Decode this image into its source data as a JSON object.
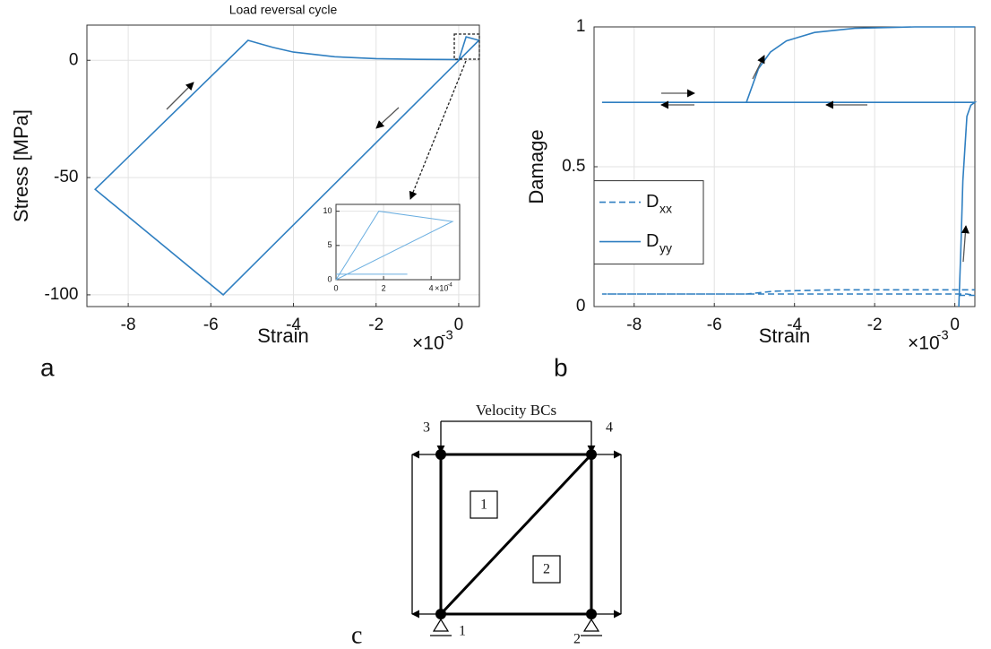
{
  "chart_data": [
    {
      "type": "line",
      "title": "Load reversal cycle",
      "xlabel": "Strain",
      "ylabel": "Stress [MPa]",
      "x_multiplier": "×10",
      "x_multiplier_exp": "-3",
      "panel_label": "a",
      "xlim": [
        -9,
        0.5
      ],
      "ylim": [
        -105,
        15
      ],
      "xticks": [
        -8,
        -6,
        -4,
        -2,
        0
      ],
      "yticks": [
        -100,
        -50,
        0
      ],
      "grid": true,
      "series": [
        {
          "color": "#2f7fc1",
          "linestyle": "solid",
          "x": [
            0,
            0.18,
            0.49,
            -5.7,
            -8.8,
            -5.1,
            -4.5,
            -4,
            -3,
            -2,
            -1,
            0
          ],
          "values": [
            0,
            10,
            8.5,
            -100,
            -55,
            8.5,
            5.5,
            3.5,
            1.5,
            0.7,
            0.4,
            0.3
          ]
        }
      ]
    },
    {
      "type": "line",
      "xlabel": "Strain",
      "ylabel": "Damage",
      "x_multiplier": "×10",
      "x_multiplier_exp": "-3",
      "panel_label": "b",
      "xlim": [
        -9,
        0.5
      ],
      "ylim": [
        0,
        1
      ],
      "xticks": [
        -8,
        -6,
        -4,
        -2,
        0
      ],
      "yticks": [
        0,
        0.5,
        1
      ],
      "grid": true,
      "legend": "center left",
      "series": [
        {
          "name": "D",
          "subscript": "xx",
          "color": "#2f7fc1",
          "linestyle": "dashed",
          "x": [
            0.1,
            0.5,
            0.3,
            -8.8,
            -5.2,
            -4.5,
            -3,
            -1,
            0.5
          ],
          "values": [
            0.04,
            0.04,
            0.045,
            0.045,
            0.045,
            0.055,
            0.06,
            0.06,
            0.06
          ]
        },
        {
          "name": "D",
          "subscript": "yy",
          "color": "#2f7fc1",
          "linestyle": "solid",
          "x": [
            0.1,
            0.15,
            0.2,
            0.3,
            0.4,
            0.5,
            -8.8,
            -5.2,
            -4.9,
            -4.6,
            -4.2,
            -3.5,
            -2.5,
            -1,
            0.5
          ],
          "values": [
            0,
            0.2,
            0.45,
            0.68,
            0.72,
            0.73,
            0.73,
            0.73,
            0.85,
            0.91,
            0.95,
            0.98,
            0.995,
            1,
            1
          ]
        }
      ]
    },
    {
      "type": "line",
      "x_multiplier": "×10",
      "x_multiplier_exp": "-4",
      "xlim": [
        0,
        5.2
      ],
      "ylim": [
        0,
        11
      ],
      "xticks": [
        0,
        2,
        4
      ],
      "yticks": [
        0,
        5,
        10
      ],
      "grid": true,
      "series": [
        {
          "color": "#6aaee0",
          "linestyle": "solid",
          "x": [
            0,
            1.8,
            4.9,
            0,
            null,
            0,
            3
          ],
          "values": [
            0,
            10,
            8.5,
            0,
            null,
            0.8,
            0.8
          ]
        }
      ]
    }
  ],
  "diagram": {
    "title": "Velocity BCs",
    "nodes": [
      "1",
      "2",
      "3",
      "4"
    ],
    "elements": [
      "1",
      "2"
    ],
    "panel_label": "c"
  }
}
